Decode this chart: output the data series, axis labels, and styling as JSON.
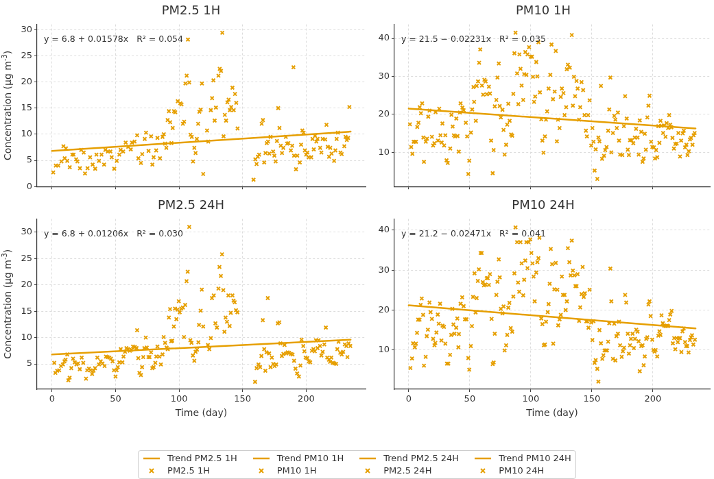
{
  "chart_data": [
    {
      "type": "scatter",
      "title": "PM2.5 1H",
      "ylabel": "Concentration (μg m$^{-3}$)",
      "annotations": [
        "y = 6.8 + 0.01578x   R² = 0.054"
      ],
      "xlim": [
        -11.75,
        246.75
      ],
      "xticks": [
        0,
        50,
        100,
        150,
        200
      ],
      "ylim": [
        0,
        31
      ],
      "yticks": [
        0,
        5,
        10,
        15,
        20,
        25,
        30
      ],
      "tick_labels": "y",
      "grid": true,
      "legend": "bottom",
      "marker": "cross",
      "series": [
        {
          "name": "Trend PM2.5 1H",
          "type": "line",
          "marker": "none",
          "color": "#e69f00",
          "x": [
            0,
            235
          ],
          "values": [
            6.8,
            10.5
          ]
        },
        {
          "name": "PM2.5 1H",
          "type": "scatter",
          "color": "#e69f00",
          "x": [
            1,
            3,
            5,
            7.5,
            9,
            11,
            10,
            12,
            14,
            16,
            17,
            19,
            20,
            22,
            23,
            25,
            26,
            28,
            30,
            32,
            34,
            35,
            37,
            39,
            41,
            42,
            44,
            46,
            47,
            49,
            51,
            53,
            54,
            56,
            58,
            60,
            62,
            63,
            65,
            67,
            68,
            70,
            71,
            73,
            74,
            76,
            78,
            79,
            80,
            82,
            83,
            85,
            87,
            88,
            89,
            90,
            91,
            92,
            93,
            94,
            95,
            96,
            97,
            99,
            101,
            102,
            103,
            104,
            105,
            106,
            107,
            108,
            109,
            110,
            111,
            112,
            113,
            114,
            115,
            116,
            117,
            118,
            119,
            122,
            123,
            125,
            126,
            127,
            128,
            129,
            131,
            132,
            133,
            134,
            135,
            136,
            137,
            138,
            139,
            140,
            141,
            142,
            143,
            144,
            145,
            146,
            158.6,
            160,
            161,
            162,
            163,
            165,
            166,
            167,
            168,
            169,
            170,
            171,
            172,
            174,
            175,
            176,
            177,
            178,
            179,
            180,
            181,
            182,
            184,
            185,
            186,
            188,
            189,
            190,
            190.5,
            192,
            193,
            195,
            196,
            197,
            198,
            199,
            200,
            201,
            202,
            204,
            205,
            206,
            207,
            208,
            209,
            211,
            212,
            213,
            215,
            216,
            217,
            218,
            219,
            220,
            222,
            223,
            224,
            225,
            227,
            228,
            230,
            231,
            232,
            233,
            234
          ],
          "values": [
            2.7,
            4.0,
            4.0,
            4.8,
            7.7,
            7.3,
            5.4,
            4.9,
            3.7,
            6.1,
            6.1,
            5.2,
            4.8,
            3.5,
            7.0,
            6.5,
            2.5,
            3.5,
            5.6,
            4.2,
            3.4,
            6.1,
            4.9,
            6.1,
            4.2,
            7.0,
            6.7,
            6.7,
            5.6,
            3.4,
            4.9,
            6.1,
            7.0,
            6.7,
            8.4,
            7.6,
            7.1,
            8.4,
            8.6,
            9.8,
            5.4,
            4.5,
            6.2,
            9.1,
            10.3,
            6.8,
            9.6,
            4.2,
            5.6,
            6.9,
            9.3,
            5.4,
            9.5,
            10.0,
            8.2,
            7.4,
            12.7,
            14.4,
            12.3,
            8.3,
            11.2,
            14.4,
            14.2,
            16.3,
            15.9,
            15.7,
            12.0,
            12.4,
            19.7,
            21.2,
            28.1,
            19.9,
            9.9,
            9.5,
            4.8,
            7.4,
            6.4,
            9.1,
            12.0,
            14.3,
            14.7,
            19.7,
            2.4,
            10.7,
            8.6,
            14.6,
            16.9,
            20.3,
            12.6,
            15.1,
            21.2,
            22.5,
            22.1,
            29.4,
            9.6,
            13.7,
            12.6,
            16.1,
            16.6,
            14.6,
            15.2,
            18.9,
            14.6,
            17.7,
            16.0,
            11.1,
            1.3,
            5.2,
            4.3,
            5.7,
            6.1,
            12.0,
            12.7,
            4.6,
            6.4,
            8.3,
            8.6,
            6.3,
            9.5,
            6.7,
            5.9,
            4.8,
            8.7,
            15.0,
            11.2,
            7.8,
            6.4,
            7.4,
            9.5,
            8.2,
            8.3,
            6.9,
            7.8,
            22.8,
            5.9,
            3.3,
            5.9,
            4.6,
            8.0,
            10.7,
            10.3,
            6.9,
            6.1,
            6.5,
            5.6,
            5.6,
            9.1,
            7.1,
            9.7,
            8.6,
            9.1,
            7.4,
            6.5,
            9.1,
            9.0,
            11.8,
            7.6,
            5.7,
            7.4,
            6.3,
            4.9,
            6.9,
            9.1,
            10.3,
            6.5,
            6.2,
            7.7,
            9.5,
            8.9,
            9.3,
            15.2
          ]
        }
      ]
    },
    {
      "type": "scatter",
      "title": "PM10 1H",
      "annotations": [
        "y = 21.5 − 0.02231x   R² = 0.035"
      ],
      "xlim": [
        -11.75,
        246.75
      ],
      "xticks": [
        0,
        50,
        100,
        150,
        200
      ],
      "ylim": [
        1,
        43.7
      ],
      "yticks": [
        10,
        20,
        30,
        40
      ],
      "tick_labels": "y",
      "grid": true,
      "legend": "bottom",
      "marker": "cross",
      "series": [
        {
          "name": "Trend PM10 1H",
          "type": "line",
          "marker": "none",
          "color": "#e69f00",
          "x": [
            0,
            235
          ],
          "values": [
            21.5,
            16.3
          ]
        },
        {
          "name": "PM10 1H",
          "type": "scatter",
          "color": "#e69f00",
          "x": [
            1,
            2,
            3,
            4,
            5,
            6,
            7,
            8,
            9,
            10,
            11,
            12,
            12.5,
            14,
            15,
            16,
            17,
            19,
            20,
            21,
            22,
            24,
            25,
            26,
            27,
            27.6,
            29,
            30,
            31,
            32,
            34,
            35,
            36,
            37,
            38,
            39,
            40,
            41,
            42,
            42.5,
            44,
            45,
            46.8,
            47.9,
            48.8,
            49.6,
            51,
            52,
            53,
            53.6,
            55,
            55.7,
            56.8,
            57.7,
            58.6,
            60,
            61,
            62,
            63,
            64,
            65.7,
            66.6,
            67.5,
            68.8,
            69.6,
            70.5,
            71.8,
            72.7,
            73.8,
            74.6,
            75.5,
            76.8,
            77.7,
            78.6,
            79.8,
            80.7,
            81.6,
            82.7,
            83.9,
            84.8,
            85.7,
            86.6,
            87.5,
            88.8,
            89.8,
            90.7,
            91.6,
            92.5,
            93.8,
            94.6,
            95.5,
            96.4,
            97.3,
            98.6,
            100,
            101,
            101.8,
            102.7,
            103.6,
            104.5,
            105.4,
            106.3,
            107.5,
            108.6,
            109.5,
            110.4,
            111.6,
            112.5,
            113.4,
            114.6,
            116,
            117,
            118.2,
            119.6,
            120.5,
            121.4,
            122.3,
            123.6,
            124.6,
            125.5,
            126.8,
            127.7,
            129,
            129.5,
            130.4,
            132,
            133.6,
            134.5,
            135.4,
            136.3,
            137.5,
            138.4,
            139.6,
            140.5,
            141.6,
            142.9,
            144,
            145.2,
            146,
            147,
            148.2,
            149.5,
            150.5,
            151.4,
            152.3,
            153.2,
            154.5,
            155.4,
            156.3,
            157.5,
            158.4,
            160,
            161,
            162.1,
            163.4,
            164.3,
            165.2,
            166,
            167.3,
            168.4,
            169.3,
            170.5,
            171.4,
            172.3,
            173.2,
            175,
            176.3,
            177.3,
            178.6,
            179.5,
            180.4,
            181.3,
            182.5,
            184,
            185.2,
            186.3,
            187.5,
            188.4,
            189.3,
            190.5,
            191.6,
            192.5,
            193.4,
            194.3,
            195.5,
            196.4,
            197.3,
            198.6,
            199.6,
            200.9,
            201.8,
            202.7,
            203.6,
            204.5,
            205.4,
            206.3,
            207.1,
            208.4,
            209.3,
            210.4,
            211.3,
            212.5,
            213.4,
            214.3,
            215.2,
            216.1,
            217.3,
            218.4,
            219.6,
            220.9,
            222.3,
            223.2,
            224.5,
            225.4,
            226.4,
            227.5,
            228.4,
            229.5,
            230.4,
            231.3,
            232.5,
            233.4,
            234.3
          ],
          "values": [
            17.4,
            11.4,
            9.6,
            12.8,
            12.8,
            12.8,
            16.7,
            17.8,
            21.9,
            20.3,
            22.9,
            13.9,
            7.5,
            12.8,
            13.6,
            19.4,
            21.0,
            14.1,
            11.8,
            12.4,
            20.6,
            13.1,
            21.5,
            14.5,
            12.6,
            17.6,
            11.8,
            14.5,
            7.9,
            7.2,
            11.0,
            19.9,
            16.8,
            14.5,
            14.2,
            18.9,
            14.3,
            10.2,
            20.5,
            22.9,
            21.8,
            21.1,
            17.8,
            14.2,
            4.3,
            7.8,
            15.2,
            21.3,
            27.2,
            23.3,
            18.3,
            27.5,
            28.7,
            33.6,
            37.1,
            27.6,
            25.2,
            29.1,
            28.7,
            25.3,
            27.3,
            25.5,
            13.1,
            4.5,
            10.6,
            22.1,
            23.8,
            29.7,
            33.4,
            22.2,
            19.2,
            21.2,
            15.9,
            9.4,
            12.0,
            17.3,
            22.8,
            18.3,
            14.7,
            14.4,
            25.4,
            36.1,
            41.5,
            30.8,
            22.7,
            35.8,
            32.0,
            27.6,
            23.8,
            30.6,
            36.4,
            30.4,
            35.8,
            37.7,
            35.2,
            35.2,
            29.9,
            23.3,
            24.7,
            33.8,
            30.0,
            39.0,
            25.8,
            18.7,
            13.1,
            9.9,
            14.2,
            18.6,
            20.8,
            26.8,
            30.4,
            38.4,
            24.0,
            26.0,
            36.7,
            12.9,
            18.6,
            16.4,
            24.6,
            26.8,
            25.6,
            19.8,
            21.9,
            31.9,
            33.1,
            32.3,
            40.9,
            22.3,
            29.9,
            24.8,
            28.8,
            26.8,
            18.6,
            21.9,
            28.5,
            26.4,
            19.8,
            15.7,
            14.2,
            19.8,
            23.7,
            11.8,
            16.4,
            12.8,
            5.2,
            10.8,
            3.0,
            13.9,
            12.9,
            27.5,
            8.3,
            9.1,
            10.6,
            11.4,
            15.7,
            21.3,
            29.7,
            10.0,
            15.1,
            19.6,
            18.6,
            16.4,
            20.5,
            13.1,
            9.4,
            9.3,
            16.9,
            24.8,
            18.9,
            10.7,
            9.3,
            13.2,
            13.2,
            12.4,
            13.9,
            16.2,
            13.9,
            9.4,
            18.4,
            15.4,
            7.5,
            8.4,
            14.9,
            10.7,
            19.2,
            22.3,
            24.9,
            12.8,
            11.4,
            11.3,
            8.4,
            10.6,
            8.7,
            16.9,
            12.5,
            18.3,
            17.0,
            15.1,
            17.1,
            14.1,
            17.7,
            16.4,
            19.8,
            17.3,
            16.6,
            13.8,
            11.0,
            12.2,
            12.3,
            15.1,
            8.9,
            13.1,
            15.0,
            15.7,
            11.3,
            12.0,
            9.3,
            10.3,
            13.4,
            13.8,
            12.0,
            14.5,
            15.1
          ]
        }
      ]
    },
    {
      "type": "scatter",
      "title": "PM2.5 24H",
      "xlabel": "Time (day)",
      "ylabel": "Concentration (μg m$^{-3}$)",
      "annotations": [
        "y = 6.8 + 0.01206x   R² = 0.030"
      ],
      "xlim": [
        -11.75,
        246.75
      ],
      "xticks": [
        0,
        50,
        100,
        150,
        200
      ],
      "ylim": [
        0.2,
        32.5
      ],
      "yticks": [
        5,
        10,
        15,
        20,
        25,
        30
      ],
      "grid": true,
      "legend": "bottom",
      "marker": "cross",
      "series": [
        {
          "name": "Trend PM2.5 24H",
          "type": "line",
          "marker": "none",
          "color": "#e69f00",
          "x": [
            0,
            235
          ],
          "values": [
            6.8,
            9.6
          ]
        },
        {
          "name": "PM2.5 24H",
          "type": "scatter",
          "color": "#e69f00",
          "x": [
            1.8,
            2.7,
            4.1,
            5.7,
            7.1,
            8.6,
            9.8,
            10.7,
            12,
            12.9,
            13.9,
            15.2,
            16.6,
            17.9,
            19.3,
            20.5,
            21.9,
            23.4,
            24.6,
            26.8,
            27.7,
            29.1,
            30.4,
            31.6,
            32.7,
            33.9,
            35.7,
            37,
            38.4,
            39.8,
            41.4,
            42.5,
            43.8,
            45.2,
            46.4,
            47.7,
            48.8,
            50,
            50.9,
            51.8,
            53,
            54.1,
            55.4,
            56.3,
            57.5,
            58.6,
            59.8,
            61.3,
            62.5,
            63.8,
            65.2,
            66.6,
            67,
            67.9,
            68.8,
            70,
            70.9,
            71.8,
            72.7,
            73.8,
            74.6,
            75.9,
            76.8,
            78,
            78.9,
            80,
            81.3,
            82.1,
            83,
            84.5,
            85.7,
            87,
            87.9,
            89,
            90.2,
            91.1,
            92,
            92.9,
            93.8,
            94.6,
            95.9,
            96.8,
            97.9,
            98.8,
            99.8,
            100.5,
            101.8,
            103,
            103.9,
            104.8,
            105.9,
            106.8,
            108,
            108.9,
            109.8,
            110.9,
            112,
            113,
            114.1,
            115.2,
            115.7,
            117,
            117.9,
            119,
            122.7,
            123.8,
            125,
            125.9,
            127.3,
            128.6,
            129.8,
            131,
            131.8,
            132.9,
            133.8,
            134.8,
            135.7,
            136.6,
            137.7,
            138.8,
            139.8,
            140.7,
            142,
            142.9,
            143.8,
            144.8,
            145.9,
            159.8,
            161,
            162.5,
            163.8,
            164.8,
            165.9,
            167,
            167.9,
            168.8,
            169.8,
            170.9,
            172,
            173,
            174.1,
            175.2,
            176.4,
            177.7,
            178.9,
            179.8,
            180.9,
            182.1,
            183,
            184.3,
            185.4,
            186.6,
            188,
            189.3,
            190.5,
            191.6,
            192.9,
            194.3,
            195.5,
            196.4,
            197.7,
            198.6,
            199.6,
            200.9,
            202.1,
            203.2,
            204.5,
            205.7,
            206.8,
            207.7,
            209,
            209.8,
            210.9,
            212,
            213,
            214.3,
            215.5,
            216.6,
            217.9,
            218.8,
            219.8,
            221.1,
            222.3,
            223.6,
            224.5,
            225.5,
            226.8,
            228,
            229.1,
            230.4,
            231.6,
            232.5,
            233.4,
            234.8
          ],
          "values": [
            5.2,
            3.3,
            3.7,
            3.8,
            4.6,
            4.9,
            5.5,
            5.8,
            6.8,
            1.9,
            2.4,
            4.2,
            6.0,
            5.3,
            4.9,
            5.1,
            4.0,
            6.2,
            5.2,
            2.2,
            3.8,
            4.1,
            3.8,
            3.1,
            3.7,
            4.2,
            6.2,
            4.9,
            5.5,
            5.1,
            4.6,
            6.4,
            6.3,
            6.2,
            6.0,
            5.5,
            3.8,
            2.6,
            3.8,
            4.4,
            5.3,
            7.8,
            5.3,
            6.4,
            7.3,
            8.0,
            7.8,
            7.5,
            7.7,
            8.3,
            8.2,
            8.0,
            11.4,
            6.1,
            3.3,
            2.9,
            4.4,
            6.3,
            8.0,
            10.0,
            8.1,
            6.3,
            6.3,
            7.2,
            4.2,
            4.4,
            5.2,
            6.4,
            8.3,
            6.4,
            4.9,
            6.8,
            10.1,
            9.0,
            8.1,
            7.8,
            13.8,
            15.4,
            9.3,
            9.4,
            12.1,
            15.5,
            13.5,
            15.3,
            16.9,
            14.8,
            15.5,
            15.7,
            10.1,
            16.2,
            20.7,
            22.5,
            31.0,
            9.5,
            9.0,
            6.6,
            5.6,
            7.3,
            7.7,
            9.1,
            12.4,
            15.1,
            19.1,
            12.1,
            8.6,
            7.8,
            9.9,
            17.5,
            18.0,
            12.7,
            11.9,
            19.3,
            23.4,
            21.7,
            25.8,
            19.0,
            11.1,
            13.8,
            13.0,
            18.0,
            12.2,
            14.7,
            18.0,
            17.0,
            16.7,
            15.2,
            14.8,
            1.6,
            4.2,
            4.9,
            4.4,
            6.5,
            13.3,
            7.8,
            3.7,
            7.2,
            17.5,
            7.0,
            4.4,
            6.2,
            5.0,
            4.6,
            4.9,
            12.7,
            12.9,
            8.9,
            6.5,
            6.9,
            8.6,
            7.0,
            7.2,
            7.1,
            6.9,
            6.8,
            5.6,
            4.1,
            3.2,
            2.6,
            4.7,
            9.6,
            8.4,
            7.4,
            6.2,
            6.1,
            5.5,
            5.3,
            7.5,
            7.8,
            7.4,
            9.5,
            8.0,
            9.5,
            8.4,
            6.6,
            7.3,
            8.7,
            11.9,
            6.2,
            5.8,
            5.4,
            6.2,
            5.2,
            5.1,
            5.0,
            7.8,
            9.2,
            7.1,
            6.8,
            7.3,
            8.7,
            8.4,
            6.3,
            8.9,
            8.4
          ]
        }
      ]
    },
    {
      "type": "scatter",
      "title": "PM10 24H",
      "xlabel": "Time (day)",
      "annotations": [
        "y = 21.2 − 0.02471x   R² = 0.041"
      ],
      "xlim": [
        -11.75,
        246.75
      ],
      "xticks": [
        0,
        50,
        100,
        150,
        200
      ],
      "ylim": [
        0.2,
        42.8
      ],
      "yticks": [
        10,
        20,
        30,
        40
      ],
      "grid": true,
      "legend": "bottom",
      "marker": "cross",
      "series": [
        {
          "name": "Trend PM10 24H",
          "type": "line",
          "marker": "none",
          "color": "#e69f00",
          "x": [
            0,
            235
          ],
          "values": [
            21.2,
            15.4
          ]
        },
        {
          "name": "PM10 24H",
          "type": "scatter",
          "color": "#e69f00",
          "x": [
            1.4,
            2.7,
            3.6,
            5,
            5.9,
            6.8,
            7.7,
            8.9,
            9.8,
            10.7,
            11.8,
            12.5,
            13.9,
            14.8,
            15.7,
            17,
            17.9,
            19,
            20,
            21.1,
            21.8,
            22.7,
            23.8,
            24.6,
            25.7,
            26.8,
            27.7,
            28.9,
            30,
            31.3,
            32.5,
            33.9,
            34.8,
            35.7,
            36.6,
            37.5,
            38.9,
            39.8,
            41.1,
            40.7,
            42.5,
            43.8,
            45,
            46.1,
            47.3,
            48.8,
            49.6,
            50.9,
            51.8,
            52.7,
            53.9,
            54.8,
            55.7,
            56.6,
            57.5,
            58.9,
            59.8,
            60.7,
            61.6,
            62.9,
            63.9,
            64.8,
            65.7,
            66.6,
            67.9,
            68.8,
            69.6,
            70.5,
            71.8,
            72.7,
            73.8,
            74.6,
            75.5,
            76.8,
            77.7,
            78.6,
            79.8,
            80.7,
            81.6,
            82.5,
            83.6,
            84.8,
            85.7,
            86.6,
            87.5,
            88.8,
            89.6,
            90.5,
            91.6,
            92.5,
            93.8,
            94.6,
            95.5,
            96.4,
            97.3,
            98.2,
            99.6,
            100.5,
            101.4,
            102.3,
            103.2,
            104.5,
            105.4,
            106.3,
            107.1,
            108.6,
            109.5,
            110.7,
            111.6,
            112.5,
            113.9,
            114.6,
            115.5,
            116.4,
            117.5,
            118.4,
            119.3,
            120.5,
            121.8,
            122.5,
            123.6,
            124.6,
            125.5,
            126.4,
            127.7,
            128.6,
            129.6,
            130.4,
            131.6,
            132.7,
            133.6,
            134.5,
            135.7,
            136.6,
            137.5,
            138.4,
            139.6,
            140.5,
            141.6,
            142.5,
            143.4,
            144.3,
            145.5,
            146.4,
            147.3,
            148.2,
            149.5,
            150.5,
            151.4,
            152.3,
            153.2,
            154.5,
            155.4,
            156.3,
            157.5,
            158.6,
            159.5,
            160.4,
            161.6,
            162.5,
            163.4,
            164.3,
            165.2,
            166,
            167.3,
            168.4,
            169.3,
            170.2,
            171.4,
            172.3,
            173.2,
            174.5,
            175.5,
            176.4,
            177.3,
            178.2,
            179.5,
            180.4,
            181.3,
            182.1,
            183.4,
            184.5,
            185.4,
            186.4,
            187.5,
            188.4,
            189.3,
            190.5,
            191.6,
            192.5,
            193.4,
            194.6,
            195.5,
            196.4,
            197.3,
            198.2,
            199.5,
            200.5,
            201.4,
            202.3,
            203.6,
            204.5,
            205.4,
            206.3,
            207.1,
            208.2,
            209.3,
            210.4,
            211.6,
            212.5,
            213.4,
            214.3,
            215.4,
            216.4,
            217.5,
            218.4,
            219.6,
            220.5,
            221.4,
            222.3,
            223.4,
            224.3,
            225.4,
            226.4,
            227.3,
            228.2,
            229.3,
            230.4,
            231.3,
            232.1,
            233.2,
            234.5
          ],
          "values": [
            5.5,
            7.9,
            11.7,
            10.7,
            11.6,
            14.3,
            17.6,
            17.6,
            21.3,
            22.9,
            18.8,
            6.1,
            8.3,
            13.5,
            15.1,
            21.9,
            19.5,
            17.8,
            12.8,
            11.2,
            11.8,
            14.4,
            18.9,
            16.6,
            21.6,
            12.4,
            16.1,
            15.8,
            11.6,
            6.6,
            6.6,
            8.8,
            13.8,
            20.3,
            16.4,
            14.1,
            15.6,
            17.9,
            14.0,
            10.7,
            21.6,
            23.2,
            21.0,
            17.7,
            17.7,
            8.0,
            5.1,
            11.0,
            16.0,
            23.3,
            29.2,
            19.4,
            23.0,
            27.3,
            30.2,
            34.3,
            34.3,
            27.0,
            26.2,
            26.4,
            28.0,
            28.0,
            26.3,
            29.0,
            17.8,
            6.5,
            6.9,
            14.1,
            23.8,
            27.1,
            32.7,
            28.2,
            20.3,
            19.2,
            20.9,
            9.9,
            11.2,
            13.8,
            20.6,
            21.8,
            15.5,
            14.6,
            23.4,
            29.2,
            40.7,
            37.0,
            26.9,
            24.6,
            37.0,
            31.7,
            23.7,
            27.6,
            32.4,
            37.0,
            30.5,
            37.0,
            37.7,
            34.3,
            31.7,
            28.4,
            22.2,
            29.4,
            32.0,
            33.0,
            38.1,
            17.9,
            16.5,
            11.2,
            11.4,
            17.1,
            19.5,
            21.5,
            26.6,
            35.3,
            31.5,
            11.6,
            25.2,
            31.8,
            25.1,
            16.2,
            17.7,
            18.8,
            28.4,
            23.8,
            23.8,
            20.0,
            22.2,
            35.5,
            32.0,
            28.7,
            37.4,
            29.9,
            28.7,
            26.0,
            26.0,
            29.0,
            17.3,
            20.7,
            24.0,
            30.8,
            23.3,
            24.2,
            17.2,
            17.2,
            15.6,
            25.1,
            16.9,
            12.5,
            17.2,
            6.8,
            7.5,
            5.3,
            2.1,
            15.0,
            11.7,
            7.8,
            8.7,
            9.9,
            9.9,
            9.9,
            12.1,
            16.7,
            30.4,
            22.2,
            7.8,
            16.6,
            7.4,
            13.5,
            14.1,
            17.1,
            11.2,
            8.3,
            9.7,
            10.6,
            23.8,
            21.9,
            14.1,
            9.1,
            11.2,
            12.8,
            14.1,
            10.5,
            12.8,
            15.1,
            14.6,
            12.2,
            4.7,
            11.0,
            11.2,
            6.2,
            8.4,
            12.8,
            13.2,
            21.4,
            22.2,
            18.5,
            12.6,
            10.0,
            9.6,
            10.0,
            8.4,
            13.6,
            14.7,
            13.8,
            18.7,
            16.7,
            16.1,
            16.0,
            16.1,
            16.0,
            17.5,
            18.9,
            19.8,
            11.7,
            13.0,
            10.2,
            13.0,
            12.0,
            13.0,
            13.0,
            9.5,
            14.7,
            15.4,
            12.0,
            11.0,
            11.0,
            9.4,
            12.5,
            13.2,
            13.7,
            11.4,
            12.6
          ]
        }
      ]
    }
  ]
}
